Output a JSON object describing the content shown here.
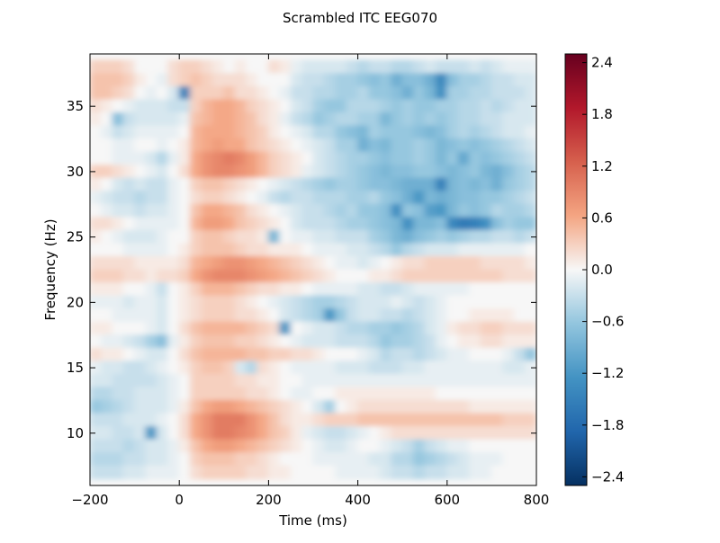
{
  "chart_data": {
    "type": "heatmap",
    "title": "Scrambled ITC EEG070",
    "xlabel": "Time (ms)",
    "ylabel": "Frequency (Hz)",
    "xlim": [
      -200,
      800
    ],
    "ylim": [
      6,
      39
    ],
    "xticks": [
      -200,
      0,
      200,
      400,
      600,
      800
    ],
    "yticks": [
      10,
      15,
      20,
      25,
      30,
      35
    ],
    "xtick_labels": [
      "−200",
      "0",
      "200",
      "400",
      "600",
      "800"
    ],
    "ytick_labels": [
      "10",
      "15",
      "20",
      "25",
      "30",
      "35"
    ],
    "colorbar": {
      "colormap": "RdBu_r",
      "vmin": -2.5,
      "vmax": 2.5,
      "ticks": [
        2.4,
        1.8,
        1.2,
        0.6,
        0.0,
        -0.6,
        -1.2,
        -1.8,
        -2.4
      ],
      "tick_labels": [
        "2.4",
        "1.8",
        "1.2",
        "0.6",
        "0.0",
        "−0.6",
        "−1.2",
        "−1.8",
        "−2.4"
      ]
    },
    "time_step_ms": 25,
    "frequencies": [
      38,
      37,
      36,
      35,
      34,
      33,
      32,
      31,
      30,
      29,
      28,
      27,
      26,
      25,
      24,
      23,
      22,
      21,
      20,
      19,
      18,
      17,
      16,
      15,
      14,
      13,
      12,
      11,
      10,
      9,
      8,
      7
    ],
    "rows": [
      [
        0.3,
        0.3,
        0.3,
        0.2,
        0.0,
        0.0,
        0.0,
        0.2,
        0.3,
        0.3,
        0.2,
        0.1,
        0.0,
        0.1,
        0.0,
        0.0,
        0.2,
        0.1,
        -0.1,
        -0.2,
        -0.2,
        -0.2,
        -0.2,
        -0.3,
        -0.4,
        -0.3,
        -0.3,
        -0.4,
        -0.4,
        -0.3,
        -0.2,
        -0.3,
        -0.3,
        -0.3,
        -0.2,
        -0.3,
        -0.2,
        -0.1,
        -0.1,
        -0.1
      ],
      [
        0.4,
        0.4,
        0.4,
        0.3,
        0.1,
        0.0,
        -0.1,
        0.2,
        0.3,
        0.4,
        0.3,
        0.2,
        0.2,
        0.2,
        0.1,
        0.0,
        0.0,
        0.0,
        -0.2,
        -0.3,
        -0.3,
        -0.4,
        -0.5,
        -0.5,
        -0.6,
        -0.7,
        -0.6,
        -0.9,
        -0.7,
        -0.7,
        -0.9,
        -1.4,
        -0.7,
        -0.5,
        -0.5,
        -0.4,
        -0.3,
        -0.3,
        -0.2,
        -0.2
      ],
      [
        0.4,
        0.4,
        0.3,
        0.2,
        0.0,
        -0.1,
        0.0,
        -0.2,
        -1.5,
        0.3,
        0.3,
        0.3,
        0.4,
        0.2,
        0.2,
        0.1,
        0.0,
        -0.1,
        -0.3,
        -0.3,
        -0.4,
        -0.4,
        -0.5,
        -0.5,
        -0.4,
        -0.6,
        -0.6,
        -0.7,
        -0.9,
        -0.6,
        -0.8,
        -1.3,
        -0.5,
        -0.5,
        -0.4,
        -0.4,
        -0.3,
        -0.3,
        -0.3,
        -0.2
      ],
      [
        0.2,
        0.1,
        0.0,
        -0.1,
        -0.2,
        -0.2,
        -0.2,
        -0.3,
        -0.3,
        0.3,
        0.5,
        0.6,
        0.6,
        0.5,
        0.3,
        0.2,
        0.1,
        0.0,
        -0.2,
        -0.3,
        -0.5,
        -0.6,
        -0.6,
        -0.4,
        -0.4,
        -0.4,
        -0.5,
        -0.6,
        -0.5,
        -0.6,
        -0.6,
        -0.5,
        -0.5,
        -0.4,
        -0.4,
        -0.3,
        -0.4,
        -0.3,
        -0.2,
        -0.2
      ],
      [
        0.1,
        0.0,
        -0.7,
        -0.3,
        -0.2,
        -0.2,
        -0.2,
        -0.2,
        -0.1,
        0.4,
        0.5,
        0.6,
        0.6,
        0.5,
        0.4,
        0.2,
        0.1,
        -0.1,
        -0.3,
        -0.4,
        -0.6,
        -0.5,
        -0.4,
        -0.4,
        -0.5,
        -0.5,
        -0.8,
        -0.6,
        -0.5,
        -0.6,
        -0.5,
        -0.6,
        -0.5,
        -0.4,
        -0.4,
        -0.3,
        -0.3,
        -0.2,
        -0.2,
        -0.2
      ],
      [
        0.0,
        -0.1,
        -0.3,
        -0.2,
        -0.1,
        -0.1,
        -0.1,
        -0.1,
        0.0,
        0.5,
        0.6,
        0.6,
        0.6,
        0.5,
        0.4,
        0.3,
        0.1,
        0.0,
        -0.1,
        -0.2,
        -0.4,
        -0.4,
        -0.6,
        -0.7,
        -0.8,
        -0.5,
        -0.6,
        -0.6,
        -0.6,
        -0.7,
        -0.8,
        -0.7,
        -0.5,
        -0.4,
        -0.5,
        -0.4,
        -0.3,
        -0.2,
        -0.2,
        -0.1
      ],
      [
        0.0,
        0.0,
        -0.1,
        -0.1,
        0.0,
        0.0,
        -0.1,
        0.0,
        0.1,
        0.5,
        0.6,
        0.7,
        0.6,
        0.6,
        0.4,
        0.3,
        0.2,
        0.1,
        0.0,
        -0.1,
        -0.2,
        -0.3,
        -0.5,
        -0.5,
        -0.9,
        -0.7,
        -0.8,
        -0.6,
        -0.6,
        -0.5,
        -0.6,
        -0.8,
        -0.7,
        -0.6,
        -0.7,
        -0.6,
        -0.5,
        -0.4,
        -0.3,
        -0.2
      ],
      [
        0.0,
        0.0,
        -0.1,
        -0.1,
        -0.1,
        -0.2,
        -0.4,
        -0.1,
        0.1,
        0.6,
        0.8,
        0.9,
        1.0,
        0.9,
        0.7,
        0.5,
        0.3,
        0.2,
        0.1,
        0.0,
        -0.2,
        -0.3,
        -0.4,
        -0.5,
        -0.5,
        -0.6,
        -0.7,
        -0.6,
        -0.6,
        -0.5,
        -0.6,
        -0.8,
        -0.6,
        -1.0,
        -0.6,
        -0.7,
        -0.6,
        -0.5,
        -0.4,
        -0.3
      ],
      [
        0.3,
        0.3,
        0.2,
        0.1,
        0.0,
        -0.1,
        -0.2,
        0.0,
        0.2,
        0.6,
        0.8,
        0.9,
        0.9,
        0.8,
        0.7,
        0.5,
        0.3,
        0.2,
        0.1,
        -0.1,
        -0.2,
        -0.3,
        -0.4,
        -0.5,
        -0.6,
        -0.7,
        -0.8,
        -0.7,
        -0.7,
        -0.6,
        -0.6,
        -0.7,
        -0.8,
        -0.7,
        -0.6,
        -0.8,
        -0.9,
        -0.7,
        -0.5,
        -0.4
      ],
      [
        0.1,
        0.0,
        -0.2,
        -0.3,
        -0.2,
        -0.3,
        -0.3,
        -0.1,
        0.0,
        0.3,
        0.4,
        0.4,
        0.3,
        0.2,
        0.1,
        0.0,
        -0.1,
        -0.2,
        -0.3,
        -0.4,
        -0.5,
        -0.6,
        -0.5,
        -0.5,
        -0.6,
        -0.7,
        -0.7,
        -0.8,
        -0.9,
        -0.9,
        -0.9,
        -1.5,
        -0.8,
        -0.7,
        -0.8,
        -0.7,
        -0.9,
        -0.6,
        -0.5,
        -0.4
      ],
      [
        -0.1,
        -0.2,
        -0.3,
        -0.3,
        -0.4,
        -0.3,
        -0.3,
        -0.1,
        0.0,
        0.2,
        0.3,
        0.3,
        0.2,
        0.1,
        0.0,
        -0.1,
        -0.3,
        -0.4,
        -0.3,
        -0.3,
        -0.4,
        -0.4,
        -0.4,
        -0.5,
        -0.5,
        -0.4,
        -0.6,
        -0.7,
        -0.9,
        -1.2,
        -0.8,
        -0.9,
        -0.8,
        -0.7,
        -0.7,
        -0.6,
        -0.6,
        -0.5,
        -0.4,
        -0.3
      ],
      [
        0.0,
        -0.1,
        -0.2,
        -0.2,
        -0.3,
        -0.2,
        -0.2,
        -0.1,
        0.0,
        0.4,
        0.6,
        0.6,
        0.5,
        0.4,
        0.2,
        0.1,
        0.0,
        -0.1,
        -0.2,
        -0.3,
        -0.3,
        -0.4,
        -0.5,
        -0.4,
        -0.6,
        -0.6,
        -0.7,
        -1.3,
        -0.6,
        -0.7,
        -1.1,
        -1.2,
        -0.8,
        -0.6,
        -0.7,
        -0.6,
        -0.4,
        -0.5,
        -0.5,
        -0.4
      ],
      [
        0.2,
        0.2,
        0.1,
        0.0,
        -0.1,
        -0.1,
        -0.1,
        -0.1,
        0.0,
        0.5,
        0.7,
        0.7,
        0.6,
        0.4,
        0.3,
        0.2,
        0.1,
        0.0,
        -0.2,
        -0.3,
        -0.3,
        -0.3,
        -0.4,
        -0.5,
        -0.5,
        -0.6,
        -0.7,
        -0.8,
        -1.3,
        -0.8,
        -0.8,
        -0.7,
        -1.4,
        -1.6,
        -1.5,
        -1.3,
        -0.7,
        -0.5,
        -0.6,
        -0.6
      ],
      [
        0.1,
        0.0,
        -0.1,
        -0.2,
        -0.2,
        -0.2,
        -0.1,
        0.0,
        0.0,
        0.3,
        0.4,
        0.4,
        0.3,
        0.2,
        0.2,
        0.1,
        -0.8,
        0.0,
        -0.1,
        -0.1,
        -0.2,
        -0.2,
        -0.3,
        -0.3,
        -0.3,
        -0.5,
        -0.6,
        -0.8,
        -0.9,
        -0.7,
        -0.6,
        -0.5,
        -0.6,
        -0.5,
        -0.4,
        -0.4,
        -0.3,
        -0.3,
        -0.4,
        -0.3
      ],
      [
        0.0,
        0.0,
        0.0,
        -0.1,
        -0.1,
        -0.1,
        -0.1,
        0.0,
        0.1,
        0.3,
        0.4,
        0.4,
        0.4,
        0.3,
        0.2,
        0.2,
        0.1,
        0.1,
        0.1,
        0.0,
        -0.1,
        -0.1,
        -0.1,
        -0.2,
        -0.2,
        -0.3,
        -0.4,
        -0.6,
        -0.4,
        -0.3,
        -0.2,
        -0.2,
        -0.2,
        -0.1,
        -0.1,
        -0.1,
        -0.1,
        -0.1,
        -0.1,
        0.0
      ],
      [
        0.2,
        0.2,
        0.2,
        0.2,
        0.1,
        0.1,
        0.1,
        0.1,
        0.2,
        0.5,
        0.6,
        0.7,
        0.8,
        0.8,
        0.7,
        0.6,
        0.5,
        0.4,
        0.3,
        0.2,
        0.1,
        0.0,
        -0.1,
        -0.1,
        -0.2,
        -0.1,
        0.0,
        0.1,
        0.2,
        0.2,
        0.3,
        0.3,
        0.3,
        0.3,
        0.3,
        0.2,
        0.2,
        0.2,
        0.2,
        0.1
      ],
      [
        0.3,
        0.3,
        0.3,
        0.2,
        0.2,
        0.1,
        0.2,
        0.2,
        0.3,
        0.6,
        0.8,
        0.9,
        0.9,
        0.9,
        0.8,
        0.7,
        0.6,
        0.5,
        0.4,
        0.3,
        0.2,
        0.1,
        0.0,
        0.0,
        0.0,
        0.1,
        0.1,
        0.2,
        0.3,
        0.3,
        0.3,
        0.3,
        0.3,
        0.3,
        0.3,
        0.3,
        0.3,
        0.2,
        0.2,
        0.2
      ],
      [
        0.1,
        0.1,
        0.1,
        0.0,
        0.0,
        -0.1,
        -0.3,
        0.0,
        0.1,
        0.3,
        0.5,
        0.5,
        0.5,
        0.4,
        0.3,
        0.2,
        0.2,
        0.1,
        0.1,
        0.0,
        -0.1,
        -0.1,
        -0.1,
        -0.1,
        -0.2,
        -0.2,
        -0.3,
        -0.3,
        -0.2,
        -0.1,
        -0.1,
        -0.1,
        -0.1,
        -0.1,
        0.0,
        0.0,
        0.0,
        0.0,
        0.0,
        0.0
      ],
      [
        -0.1,
        -0.1,
        -0.1,
        -0.2,
        -0.1,
        -0.1,
        -0.2,
        0.0,
        0.1,
        0.2,
        0.3,
        0.3,
        0.3,
        0.2,
        0.1,
        0.0,
        -0.1,
        -0.2,
        -0.3,
        -0.4,
        -0.5,
        -0.5,
        -0.4,
        -0.3,
        -0.2,
        -0.2,
        -0.2,
        -0.1,
        -0.2,
        -0.3,
        -0.2,
        -0.1,
        0.0,
        0.0,
        0.0,
        0.0,
        0.0,
        0.0,
        0.0,
        0.0
      ],
      [
        0.0,
        0.0,
        -0.1,
        -0.1,
        -0.1,
        -0.1,
        -0.2,
        0.0,
        0.1,
        0.2,
        0.3,
        0.3,
        0.3,
        0.2,
        0.2,
        0.1,
        0.0,
        -0.2,
        -0.3,
        -0.4,
        -0.5,
        -1.2,
        -0.6,
        -0.3,
        -0.2,
        -0.2,
        -0.3,
        -0.3,
        -0.4,
        -0.3,
        -0.2,
        -0.1,
        0.0,
        0.0,
        0.1,
        0.1,
        0.1,
        0.1,
        0.0,
        0.0
      ],
      [
        0.1,
        0.1,
        0.0,
        0.0,
        0.0,
        -0.1,
        -0.2,
        0.0,
        0.2,
        0.4,
        0.5,
        0.5,
        0.5,
        0.5,
        0.4,
        0.3,
        0.2,
        -1.2,
        0.0,
        -0.1,
        -0.2,
        -0.2,
        -0.3,
        -0.4,
        -0.4,
        -0.5,
        -0.5,
        -0.6,
        -0.5,
        -0.4,
        -0.2,
        -0.1,
        0.1,
        0.2,
        0.2,
        0.3,
        0.3,
        0.2,
        0.2,
        0.2
      ],
      [
        0.0,
        -0.1,
        -0.1,
        -0.2,
        -0.3,
        -0.5,
        -0.7,
        -0.1,
        0.1,
        0.3,
        0.4,
        0.4,
        0.4,
        0.3,
        0.3,
        0.2,
        0.1,
        0.0,
        -0.1,
        -0.2,
        -0.2,
        -0.2,
        -0.3,
        -0.3,
        -0.3,
        -0.4,
        -0.6,
        -0.5,
        -0.5,
        -0.4,
        -0.3,
        -0.1,
        0.0,
        0.1,
        0.1,
        0.2,
        0.2,
        0.1,
        0.1,
        0.1
      ],
      [
        0.2,
        0.1,
        0.1,
        0.0,
        -0.1,
        -0.2,
        -0.2,
        0.0,
        0.2,
        0.4,
        0.5,
        0.5,
        0.5,
        0.5,
        0.4,
        0.4,
        0.3,
        0.3,
        0.2,
        0.2,
        0.1,
        0.0,
        0.0,
        0.0,
        -0.1,
        -0.2,
        -0.4,
        -0.3,
        -0.3,
        -0.4,
        -0.3,
        -0.2,
        -0.1,
        -0.1,
        0.0,
        0.0,
        0.0,
        -0.1,
        -0.3,
        -0.6
      ],
      [
        -0.1,
        -0.2,
        -0.2,
        -0.3,
        -0.3,
        -0.2,
        -0.1,
        0.0,
        0.1,
        0.3,
        0.4,
        0.4,
        0.3,
        -0.2,
        -0.4,
        0.2,
        0.1,
        0.0,
        -0.1,
        -0.1,
        -0.1,
        -0.1,
        -0.2,
        -0.2,
        -0.2,
        -0.3,
        -0.3,
        -0.3,
        -0.2,
        -0.2,
        -0.1,
        -0.1,
        -0.1,
        -0.1,
        -0.1,
        -0.1,
        -0.1,
        -0.2,
        -0.2,
        -0.1
      ],
      [
        -0.2,
        -0.2,
        -0.3,
        -0.3,
        -0.3,
        -0.3,
        -0.2,
        -0.1,
        0.0,
        0.3,
        0.3,
        0.3,
        0.3,
        0.2,
        0.2,
        0.1,
        0.1,
        0.0,
        0.0,
        -0.1,
        -0.1,
        -0.1,
        -0.1,
        -0.1,
        -0.1,
        -0.1,
        -0.1,
        -0.1,
        -0.1,
        -0.1,
        -0.1,
        -0.1,
        -0.1,
        -0.1,
        -0.1,
        -0.1,
        -0.1,
        -0.1,
        -0.1,
        -0.1
      ],
      [
        -0.4,
        -0.4,
        -0.3,
        -0.3,
        -0.2,
        -0.2,
        -0.2,
        -0.1,
        0.0,
        0.3,
        0.3,
        0.3,
        0.3,
        0.3,
        0.2,
        0.2,
        0.1,
        0.0,
        -0.1,
        -0.1,
        0.0,
        0.0,
        0.1,
        0.1,
        0.1,
        0.1,
        0.1,
        0.1,
        0.1,
        0.1,
        0.1,
        0.0,
        0.0,
        0.0,
        0.0,
        0.0,
        0.0,
        0.0,
        0.0,
        0.0
      ],
      [
        -0.6,
        -0.5,
        -0.4,
        -0.3,
        -0.2,
        -0.2,
        -0.2,
        -0.1,
        0.1,
        0.4,
        0.6,
        0.7,
        0.7,
        0.6,
        0.5,
        0.4,
        0.3,
        0.2,
        0.1,
        0.0,
        -0.2,
        -0.5,
        0.0,
        0.1,
        0.2,
        0.2,
        0.2,
        0.2,
        0.2,
        0.2,
        0.2,
        0.2,
        0.2,
        0.2,
        0.1,
        0.1,
        0.1,
        0.1,
        0.1,
        0.1
      ],
      [
        -0.3,
        -0.3,
        -0.3,
        -0.2,
        -0.2,
        -0.2,
        -0.1,
        0.0,
        0.2,
        0.6,
        0.8,
        1.0,
        1.0,
        1.0,
        0.8,
        0.6,
        0.4,
        0.2,
        0.1,
        0.1,
        0.2,
        0.3,
        0.3,
        0.3,
        0.4,
        0.4,
        0.4,
        0.4,
        0.4,
        0.4,
        0.4,
        0.4,
        0.4,
        0.4,
        0.4,
        0.4,
        0.4,
        0.3,
        0.3,
        0.3
      ],
      [
        -0.2,
        -0.2,
        -0.3,
        -0.3,
        -0.2,
        -1.2,
        -0.2,
        0.0,
        0.2,
        0.6,
        0.8,
        1.0,
        1.0,
        0.9,
        0.8,
        0.6,
        0.4,
        0.3,
        0.1,
        -0.1,
        -0.2,
        -0.3,
        -0.3,
        -0.2,
        -0.1,
        0.0,
        0.1,
        0.2,
        0.2,
        0.2,
        0.2,
        0.2,
        0.2,
        0.2,
        0.2,
        0.2,
        0.2,
        0.2,
        0.2,
        0.2
      ],
      [
        -0.3,
        -0.3,
        -0.3,
        -0.4,
        -0.3,
        -0.2,
        -0.2,
        -0.1,
        0.1,
        0.4,
        0.6,
        0.7,
        0.7,
        0.6,
        0.5,
        0.4,
        0.3,
        0.2,
        0.1,
        0.0,
        -0.1,
        -0.2,
        -0.2,
        -0.1,
        0.0,
        0.0,
        -0.1,
        -0.2,
        -0.3,
        -0.5,
        -0.3,
        -0.2,
        -0.1,
        -0.1,
        0.0,
        0.0,
        0.0,
        0.0,
        0.0,
        0.0
      ],
      [
        -0.4,
        -0.4,
        -0.4,
        -0.3,
        -0.3,
        -0.2,
        -0.2,
        -0.1,
        0.0,
        0.3,
        0.4,
        0.4,
        0.4,
        0.3,
        0.3,
        0.2,
        0.1,
        0.0,
        0.0,
        0.0,
        -0.1,
        -0.1,
        -0.1,
        -0.1,
        -0.1,
        -0.2,
        -0.2,
        -0.4,
        -0.4,
        -0.6,
        -0.5,
        -0.4,
        -0.3,
        -0.2,
        -0.1,
        -0.1,
        -0.1,
        0.0,
        0.0,
        0.0
      ],
      [
        -0.3,
        -0.3,
        -0.3,
        -0.2,
        -0.2,
        -0.1,
        -0.1,
        -0.1,
        0.0,
        0.2,
        0.3,
        0.3,
        0.3,
        0.3,
        0.2,
        0.2,
        0.1,
        0.1,
        0.0,
        0.0,
        0.0,
        0.0,
        -0.1,
        -0.1,
        -0.1,
        -0.1,
        -0.2,
        -0.3,
        -0.3,
        -0.4,
        -0.3,
        -0.3,
        -0.2,
        -0.2,
        -0.1,
        -0.1,
        0.0,
        0.0,
        0.0,
        0.0
      ]
    ]
  }
}
